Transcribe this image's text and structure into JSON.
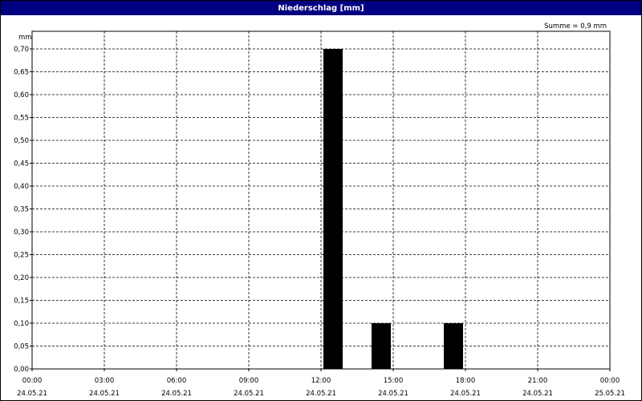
{
  "window": {
    "title": "Niederschlag [mm]"
  },
  "colors": {
    "title_bar": "#000080",
    "bar": "#000000",
    "grid": "#000000"
  },
  "chart_data": {
    "type": "bar",
    "title": "Niederschlag [mm]",
    "ylabel": "mm",
    "annotation": "Summe = 0,9 mm",
    "ylim": [
      0,
      0.7
    ],
    "yticks": [
      "0,00",
      "0,05",
      "0,10",
      "0,15",
      "0,20",
      "0,25",
      "0,30",
      "0,35",
      "0,40",
      "0,45",
      "0,50",
      "0,55",
      "0,60",
      "0,65",
      "0,70"
    ],
    "xlim_hours": [
      0,
      24
    ],
    "xticks": [
      {
        "time": "00:00",
        "date": "24.05.21",
        "hour": 0
      },
      {
        "time": "03:00",
        "date": "24.05.21",
        "hour": 3
      },
      {
        "time": "06:00",
        "date": "24.05.21",
        "hour": 6
      },
      {
        "time": "09:00",
        "date": "24.05.21",
        "hour": 9
      },
      {
        "time": "12:00",
        "date": "24.05.21",
        "hour": 12
      },
      {
        "time": "15:00",
        "date": "24.05.21",
        "hour": 15
      },
      {
        "time": "18:00",
        "date": "24.05.21",
        "hour": 18
      },
      {
        "time": "21:00",
        "date": "24.05.21",
        "hour": 21
      },
      {
        "time": "00:00",
        "date": "25.05.21",
        "hour": 24
      }
    ],
    "grid": true,
    "bars": [
      {
        "start_hour": 12.1,
        "end_hour": 12.9,
        "value": 0.7
      },
      {
        "start_hour": 14.1,
        "end_hour": 14.9,
        "value": 0.1
      },
      {
        "start_hour": 17.1,
        "end_hour": 17.9,
        "value": 0.1
      }
    ]
  }
}
